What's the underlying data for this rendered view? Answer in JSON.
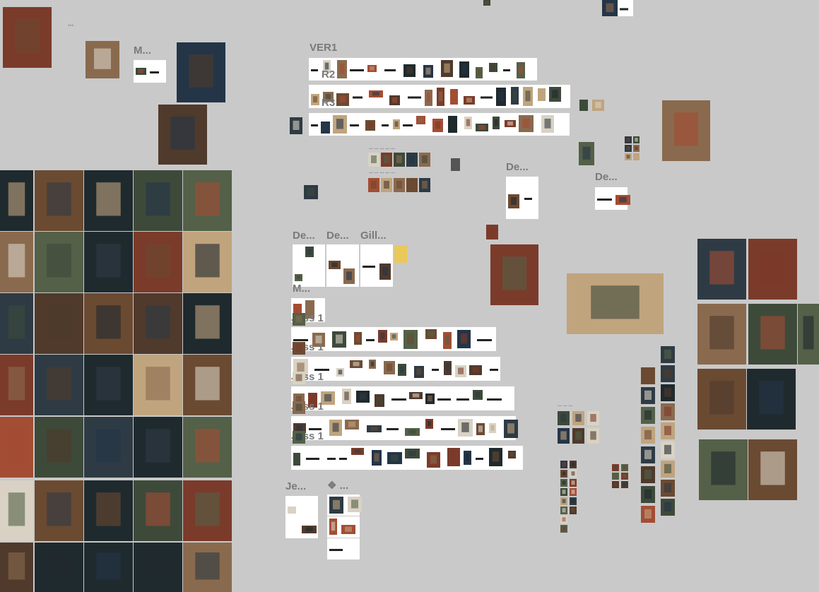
{
  "canvas_labels": [
    "...",
    "M...",
    "VER1",
    "R2",
    "R3",
    "De...",
    "De...",
    "De...",
    "De...",
    "Gill...",
    "M...",
    "Jess 1",
    "Jess 1",
    "Jess 1",
    "Jess 1",
    "Jess 1",
    "Je...",
    "❖ ...",
    "... ... ... ... ...",
    "... ... ... ... ...",
    "... ... ..."
  ]
}
